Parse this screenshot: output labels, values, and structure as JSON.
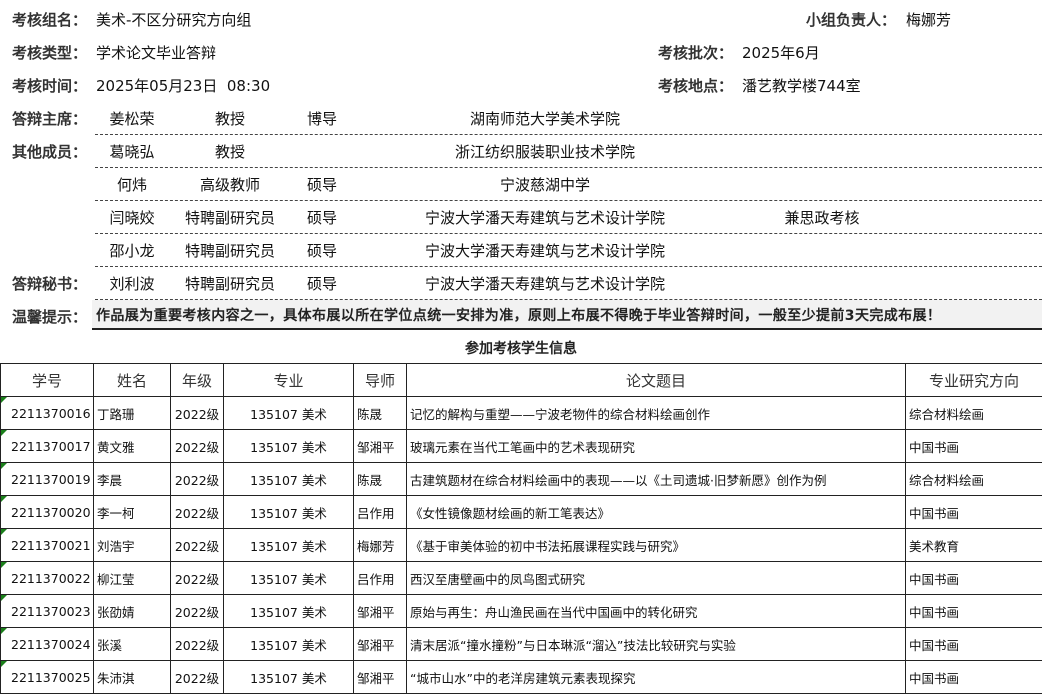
{
  "header": {
    "group_label": "考核组名：",
    "group_value": "美术-不区分研究方向组",
    "leader_label": "小组负责人：",
    "leader_value": "梅娜芳",
    "type_label": "考核类型：",
    "type_value": "学术论文毕业答辩",
    "batch_label": "考核批次：",
    "batch_value": "2025年6月",
    "time_label": "考核时间：",
    "time_value": "2025年05月23日  08:30",
    "place_label": "考核地点：",
    "place_value": "潘艺教学楼744室"
  },
  "committee": {
    "chair_label": "答辩主席：",
    "members_label": "其他成员：",
    "secretary_label": "答辩秘书：",
    "rows": [
      {
        "name": "姜松荣",
        "title": "教授",
        "degree": "博导",
        "institution": "湖南师范大学美术学院",
        "note": ""
      },
      {
        "name": "葛晓弘",
        "title": "教授",
        "degree": "",
        "institution": "浙江纺织服装职业技术学院",
        "note": ""
      },
      {
        "name": "何炜",
        "title": "高级教师",
        "degree": "硕导",
        "institution": "宁波慈湖中学",
        "note": ""
      },
      {
        "name": "闫晓姣",
        "title": "特聘副研究员",
        "degree": "硕导",
        "institution": "宁波大学潘天寿建筑与艺术设计学院",
        "note": "兼思政考核"
      },
      {
        "name": "邵小龙",
        "title": "特聘副研究员",
        "degree": "硕导",
        "institution": "宁波大学潘天寿建筑与艺术设计学院",
        "note": ""
      },
      {
        "name": "刘利波",
        "title": "特聘副研究员",
        "degree": "硕导",
        "institution": "宁波大学潘天寿建筑与艺术设计学院",
        "note": ""
      }
    ]
  },
  "tip": {
    "label": "温馨提示：",
    "text": "作品展为重要考核内容之一，具体布展以所在学位点统一安排为准，原则上布展不得晚于毕业答辩时间，一般至少提前3天完成布展！"
  },
  "students": {
    "title": "参加考核学生信息",
    "columns": [
      "学号",
      "姓名",
      "年级",
      "专业",
      "导师",
      "论文题目",
      "专业研究方向"
    ],
    "marker_color": "#1a7f1a",
    "rows": [
      [
        "2211370016",
        "丁路珊",
        "2022级",
        "135107 美术",
        "陈晟",
        "记忆的解构与重塑——宁波老物件的综合材料绘画创作",
        "综合材料绘画"
      ],
      [
        "2211370017",
        "黄文雅",
        "2022级",
        "135107 美术",
        "邹湘平",
        "玻璃元素在当代工笔画中的艺术表现研究",
        "中国书画"
      ],
      [
        "2211370019",
        "李晨",
        "2022级",
        "135107 美术",
        "陈晟",
        "古建筑题材在综合材料绘画中的表现——以《土司遗城·旧梦新愿》创作为例",
        "综合材料绘画"
      ],
      [
        "2211370020",
        "李一柯",
        "2022级",
        "135107 美术",
        "吕作用",
        "《女性镜像题材绘画的新工笔表达》",
        "中国书画"
      ],
      [
        "2211370021",
        "刘浩宇",
        "2022级",
        "135107 美术",
        "梅娜芳",
        "《基于审美体验的初中书法拓展课程实践与研究》",
        "美术教育"
      ],
      [
        "2211370022",
        "柳江莹",
        "2022级",
        "135107 美术",
        "吕作用",
        "西汉至唐壁画中的凤鸟图式研究",
        "中国书画"
      ],
      [
        "2211370023",
        "张劭婧",
        "2022级",
        "135107 美术",
        "邹湘平",
        "原始与再生：舟山渔民画在当代中国画中的转化研究",
        "中国书画"
      ],
      [
        "2211370024",
        "张溪",
        "2022级",
        "135107 美术",
        "邹湘平",
        "清末居派“撞水撞粉”与日本琳派“溜込”技法比较研究与实验",
        "中国书画"
      ],
      [
        "2211370025",
        "朱沛淇",
        "2022级",
        "135107 美术",
        "邹湘平",
        "“城市山水”中的老洋房建筑元素表现探究",
        "中国书画"
      ]
    ]
  }
}
